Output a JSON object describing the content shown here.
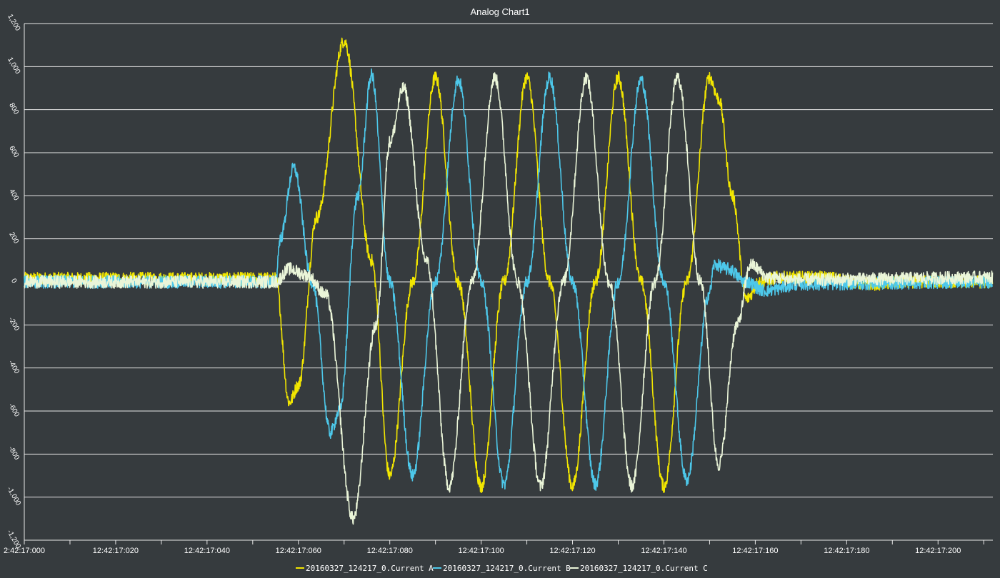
{
  "chart_data": {
    "type": "line",
    "title": "Analog Chart1",
    "xlabel": "",
    "ylabel": "",
    "ylim": [
      -1200,
      1200
    ],
    "y_ticks": [
      "1,200",
      "1,000",
      "800",
      "600",
      "400",
      "200",
      "0",
      "-200",
      "-400",
      "-600",
      "-800",
      "-1,000",
      "-1,200"
    ],
    "y_tick_values": [
      1200,
      1000,
      800,
      600,
      400,
      200,
      0,
      -200,
      -400,
      -600,
      -800,
      -1000,
      -1200
    ],
    "xlim_ms": [
      0,
      212
    ],
    "x_ticks": [
      "2:42:17:000",
      "12:42:17:020",
      "12:42:17:040",
      "12:42:17:060",
      "12:42:17:080",
      "12:42:17:100",
      "12:42:17:120",
      "12:42:17:140",
      "12:42:17:160",
      "12:42:17:180",
      "12:42:17:200"
    ],
    "x_tick_ms": [
      0,
      20,
      40,
      60,
      80,
      100,
      120,
      140,
      160,
      180,
      200
    ],
    "grid": "horizontal",
    "legend_position": "bottom-center",
    "noise_amplitude": 30,
    "series": [
      {
        "name": "20160327_124217_0.Current A",
        "color": "#f2e600",
        "points_ms": [
          [
            0,
            15
          ],
          [
            55,
            15
          ],
          [
            58,
            -560
          ],
          [
            60,
            -480
          ],
          [
            64,
            300
          ],
          [
            70,
            1120
          ],
          [
            76,
            100
          ],
          [
            80,
            -900
          ],
          [
            85,
            0
          ],
          [
            90,
            950
          ],
          [
            95,
            0
          ],
          [
            100,
            -950
          ],
          [
            105,
            0
          ],
          [
            110,
            950
          ],
          [
            115,
            0
          ],
          [
            120,
            -950
          ],
          [
            125,
            0
          ],
          [
            130,
            950
          ],
          [
            135,
            0
          ],
          [
            140,
            -950
          ],
          [
            145,
            0
          ],
          [
            150,
            950
          ],
          [
            152,
            850
          ],
          [
            155,
            400
          ],
          [
            158,
            -80
          ],
          [
            161,
            0
          ],
          [
            165,
            20
          ],
          [
            175,
            20
          ],
          [
            185,
            -10
          ],
          [
            195,
            0
          ],
          [
            212,
            0
          ]
        ]
      },
      {
        "name": "20160327_124217_0.Current B",
        "color": "#4dc8ea",
        "points_ms": [
          [
            0,
            0
          ],
          [
            55,
            0
          ],
          [
            56,
            200
          ],
          [
            59,
            530
          ],
          [
            63,
            0
          ],
          [
            67,
            -700
          ],
          [
            69,
            -600
          ],
          [
            73,
            400
          ],
          [
            76,
            960
          ],
          [
            80,
            0
          ],
          [
            85,
            -900
          ],
          [
            90,
            0
          ],
          [
            95,
            940
          ],
          [
            100,
            0
          ],
          [
            105,
            -940
          ],
          [
            110,
            0
          ],
          [
            115,
            950
          ],
          [
            120,
            0
          ],
          [
            125,
            -940
          ],
          [
            130,
            0
          ],
          [
            135,
            940
          ],
          [
            140,
            0
          ],
          [
            145,
            -920
          ],
          [
            150,
            -50
          ],
          [
            151,
            80
          ],
          [
            154,
            60
          ],
          [
            158,
            0
          ],
          [
            162,
            -40
          ],
          [
            170,
            -10
          ],
          [
            212,
            0
          ]
        ]
      },
      {
        "name": "20160327_124217_0.Current C",
        "color": "#eaf5d8",
        "points_ms": [
          [
            0,
            0
          ],
          [
            55,
            0
          ],
          [
            58,
            60
          ],
          [
            62,
            30
          ],
          [
            66,
            -60
          ],
          [
            72,
            -1100
          ],
          [
            77,
            -200
          ],
          [
            80,
            650
          ],
          [
            83,
            900
          ],
          [
            88,
            100
          ],
          [
            93,
            -950
          ],
          [
            98,
            0
          ],
          [
            103,
            950
          ],
          [
            108,
            0
          ],
          [
            113,
            -950
          ],
          [
            118,
            0
          ],
          [
            123,
            950
          ],
          [
            128,
            0
          ],
          [
            133,
            -950
          ],
          [
            138,
            0
          ],
          [
            143,
            950
          ],
          [
            148,
            0
          ],
          [
            152,
            -850
          ],
          [
            156,
            -200
          ],
          [
            159,
            80
          ],
          [
            163,
            20
          ],
          [
            170,
            10
          ],
          [
            212,
            20
          ]
        ]
      }
    ]
  }
}
